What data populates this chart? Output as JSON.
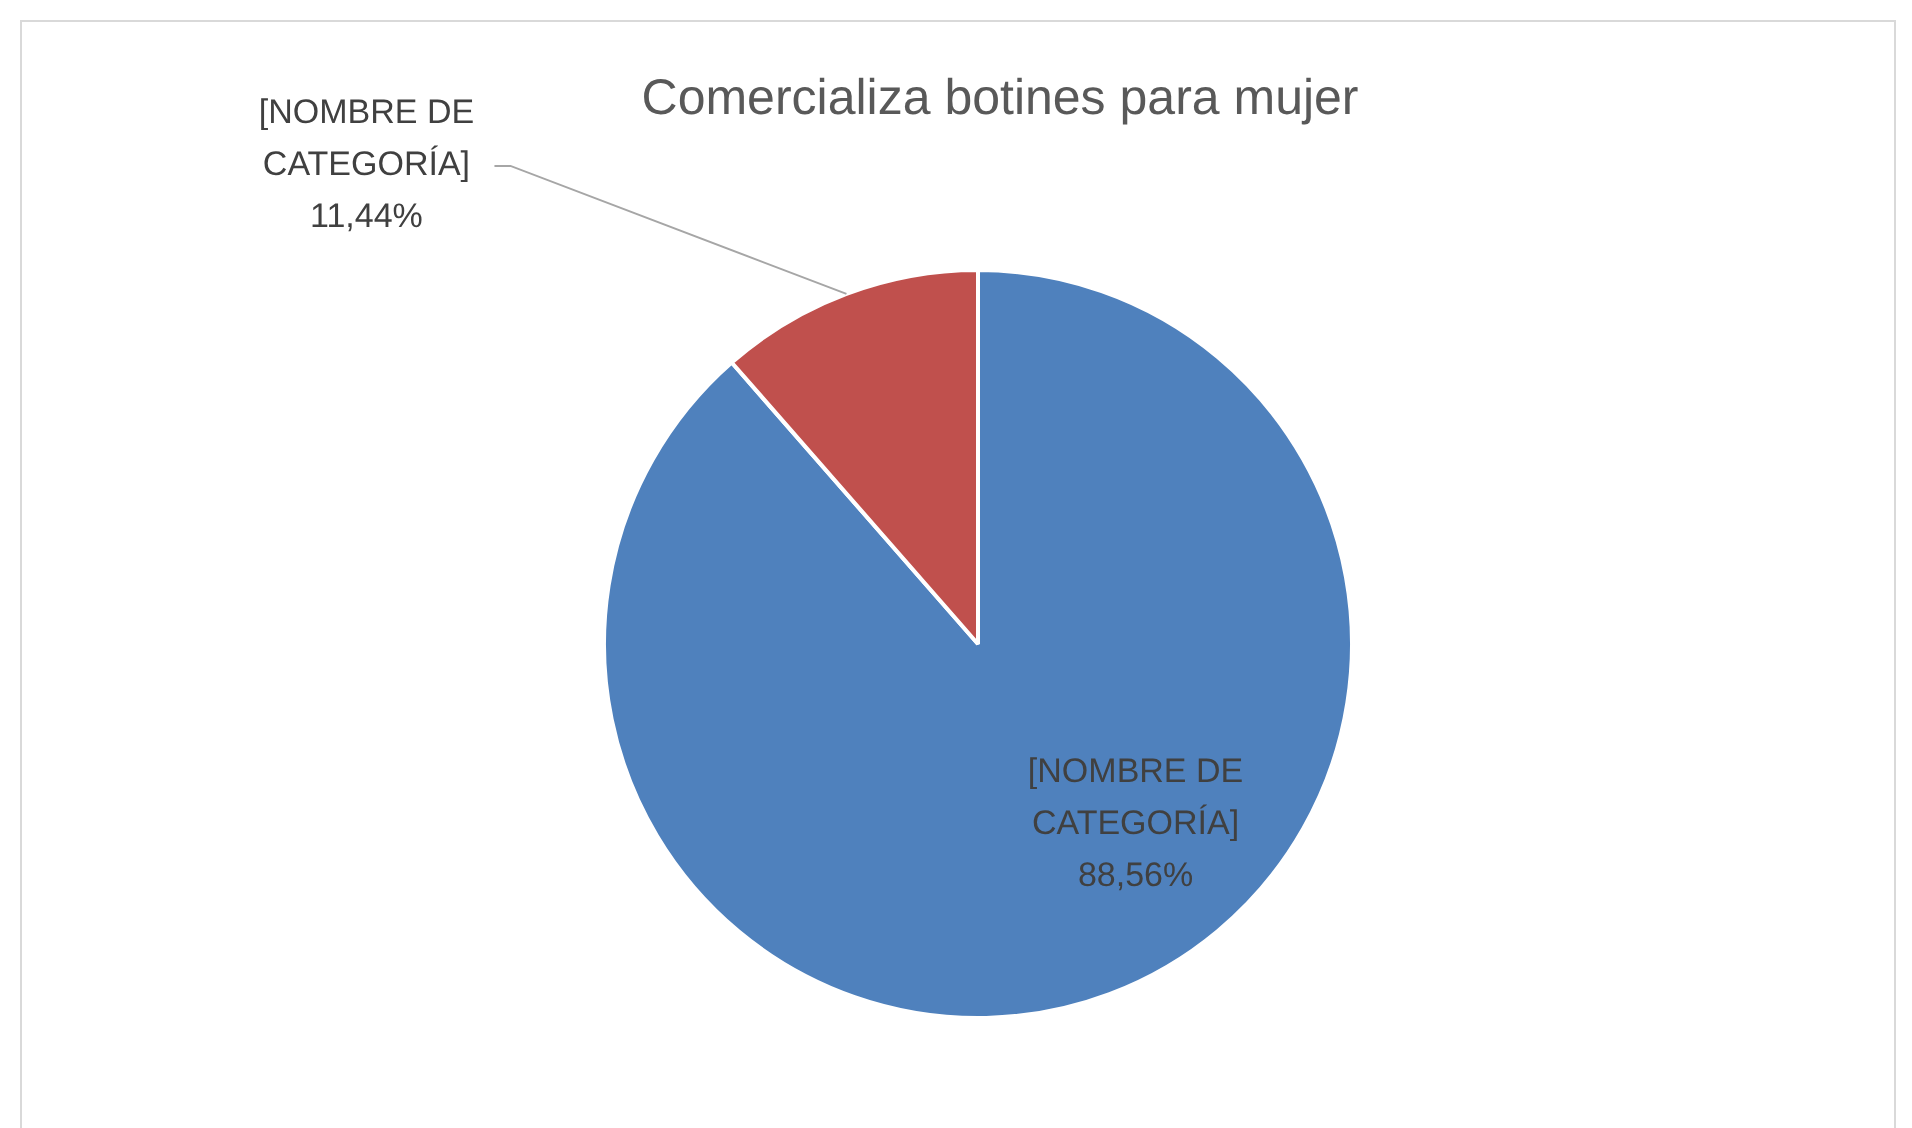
{
  "chart_data": {
    "type": "pie",
    "title": "Comercializa botines para mujer",
    "categories": [
      "[NOMBRE DE CATEGORÍA]",
      "[NOMBRE DE CATEGORÍA]"
    ],
    "values": [
      88.56,
      11.44
    ],
    "colors": [
      "#4f81bd",
      "#c0504d"
    ],
    "value_labels": [
      "88,56%",
      "11,44%"
    ],
    "legend": false
  }
}
